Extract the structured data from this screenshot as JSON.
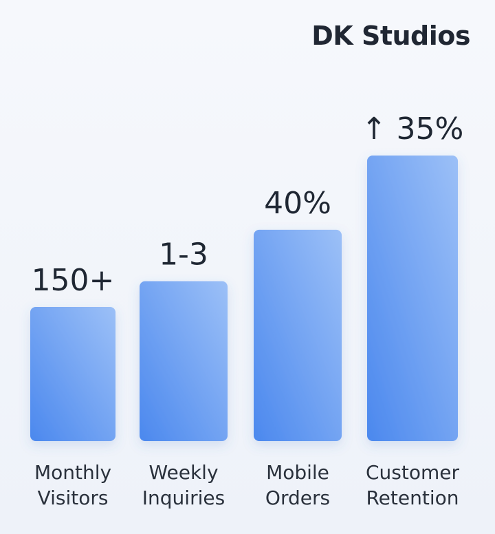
{
  "brand": "DK Studios",
  "colors": {
    "bar_top": "#9cc0f7",
    "bar_bottom": "#4b88ee",
    "text": "#1f2733"
  },
  "chart_data": {
    "type": "bar",
    "categories": [
      [
        "Monthly",
        "Visitors"
      ],
      [
        "Weekly",
        "Inquiries"
      ],
      [
        "Mobile",
        "Orders"
      ],
      [
        "Customer",
        "Retention"
      ]
    ],
    "data_labels": [
      "150+",
      "1-3",
      "40%",
      "↑ 35%"
    ],
    "values": [
      0.47,
      0.56,
      0.74,
      1.0
    ],
    "ylim": [
      0,
      1
    ],
    "grid": false,
    "legend": "none"
  }
}
